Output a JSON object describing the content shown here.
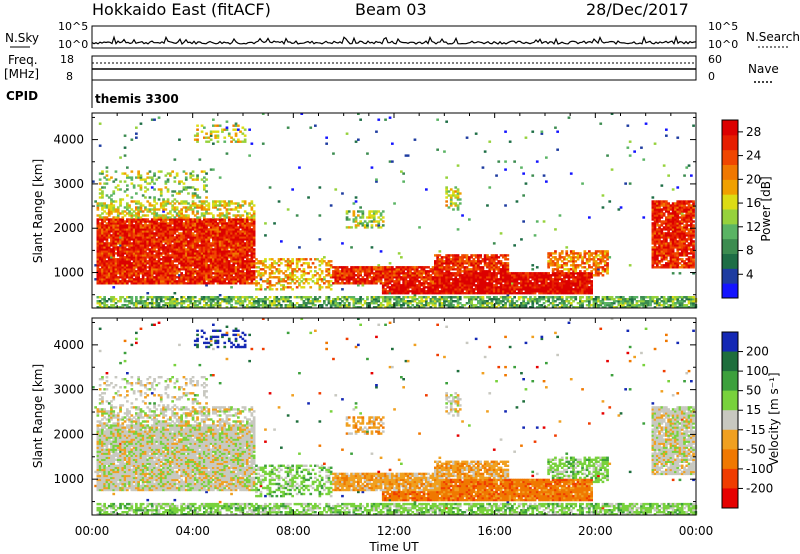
{
  "header": {
    "site": "Hokkaido East (fitACF)",
    "beam": "Beam 03",
    "date": "28/Dec/2017"
  },
  "top_panels": {
    "nsky_label": "N.Sky",
    "nsky_ticks": [
      "10^5",
      "10^0"
    ],
    "nsearch_label": "N.Search",
    "freq_label": "Freq.",
    "freq_unit": "[MHz]",
    "freq_ticks": [
      "18",
      "8"
    ],
    "nave_label": "Nave",
    "nave_ticks": [
      "60",
      "0"
    ],
    "cpid_label": "CPID",
    "cpid_value": "themis 3300"
  },
  "chart_data": [
    {
      "type": "heatmap",
      "panel": "power",
      "ylabel": "Slant Range [km]",
      "y_ticks": [
        1000,
        2000,
        3000,
        4000
      ],
      "ylim": [
        200,
        4600
      ],
      "xlim_hours": [
        0,
        24
      ],
      "colorbar": {
        "label": "Power [dB]",
        "ticks": [
          "4",
          "8",
          "12",
          "16",
          "20",
          "24",
          "28"
        ],
        "colors": [
          "#1414ff",
          "#1e3ca0",
          "#1e6e46",
          "#3c8c50",
          "#5ab464",
          "#96d23c",
          "#dcdc14",
          "#f0a000",
          "#f07800",
          "#f04600",
          "#e61e00",
          "#dc0000"
        ]
      }
    },
    {
      "type": "heatmap",
      "panel": "velocity",
      "ylabel": "Slant Range [km]",
      "y_ticks": [
        1000,
        2000,
        3000,
        4000
      ],
      "ylim": [
        200,
        4600
      ],
      "xlim_hours": [
        0,
        24
      ],
      "colorbar": {
        "label": "Velocity [m s⁻¹]",
        "ticks": [
          "200",
          "100",
          "50",
          "15",
          "-15",
          "-50",
          "-100",
          "-200"
        ],
        "colors": [
          "#1428b4",
          "#1e6e3c",
          "#3ca03c",
          "#78d23c",
          "#c8c8c0",
          "#f0a020",
          "#f07800",
          "#f03c00",
          "#e60000"
        ]
      }
    }
  ],
  "x_axis": {
    "label": "Time UT",
    "ticks": [
      "00:00",
      "04:00",
      "08:00",
      "12:00",
      "16:00",
      "20:00",
      "00:00"
    ]
  }
}
